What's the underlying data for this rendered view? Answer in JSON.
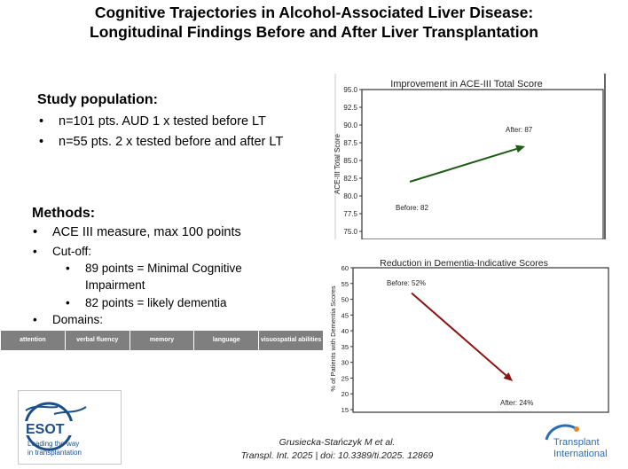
{
  "title": {
    "line1": "Cognitive Trajectories in Alcohol-Associated Liver Disease:",
    "line2": "Longitudinal Findings Before and After Liver Transplantation"
  },
  "study": {
    "heading": "Study population:",
    "items": [
      "n=101 pts. AUD 1 x tested before LT",
      "n=55 pts.  2 x tested before and after LT"
    ]
  },
  "methods": {
    "heading": "Methods:",
    "item1": "ACE III measure, max 100 points",
    "item2": "Cut-off:",
    "sub1_line1": "89 points = Minimal Cognitive",
    "sub1_line2": "Impairment",
    "sub2": "82 points = likely dementia",
    "item3": "Domains:"
  },
  "domains": [
    "attention",
    "verbal fluency",
    "memory",
    "language",
    "visuospatial abilities"
  ],
  "chart_data": [
    {
      "type": "line",
      "title": "Improvement in ACE-III Total Score",
      "ylabel": "ACE-III Total Score",
      "xlabel": "",
      "ylim": [
        75.0,
        95.0
      ],
      "yticks": [
        "95.0",
        "92.5",
        "90.0",
        "87.5",
        "85.0",
        "82.5",
        "80.0",
        "77.5",
        "75.0"
      ],
      "points": [
        {
          "label": "Before",
          "value": 82
        },
        {
          "label": "After",
          "value": 87
        }
      ],
      "annotations": [
        "Before: 82",
        "After: 87"
      ],
      "color": "#1e5b14"
    },
    {
      "type": "line",
      "title": "Reduction in Dementia-Indicative Scores",
      "ylabel": "% of Patients with Dementia Scores",
      "xlabel": "",
      "ylim": [
        15,
        60
      ],
      "yticks": [
        "60",
        "55",
        "50",
        "45",
        "40",
        "35",
        "30",
        "25",
        "20",
        "15"
      ],
      "points": [
        {
          "label": "Before",
          "value": 52
        },
        {
          "label": "After",
          "value": 24
        }
      ],
      "annotations": [
        "Before: 52%",
        "After: 24%"
      ],
      "color": "#8b1414"
    }
  ],
  "logo_esot": {
    "name": "ESOT",
    "tagline_line1": "Leading the way",
    "tagline_line2": "in transplantation"
  },
  "citation": {
    "line1": "Grusiecka-Stańczyk M et al.",
    "line2": "Transpl. Int. 2025 | doi: 10.3389/ti.2025. 12869"
  },
  "logo_ti": {
    "line1": "Transplant",
    "line2": "International"
  },
  "colors": {
    "domain_bg": "#7f7f7f",
    "esot_blue": "#1b4f8a",
    "ti_blue": "#2a6db5",
    "ti_orange": "#e08a2c"
  }
}
